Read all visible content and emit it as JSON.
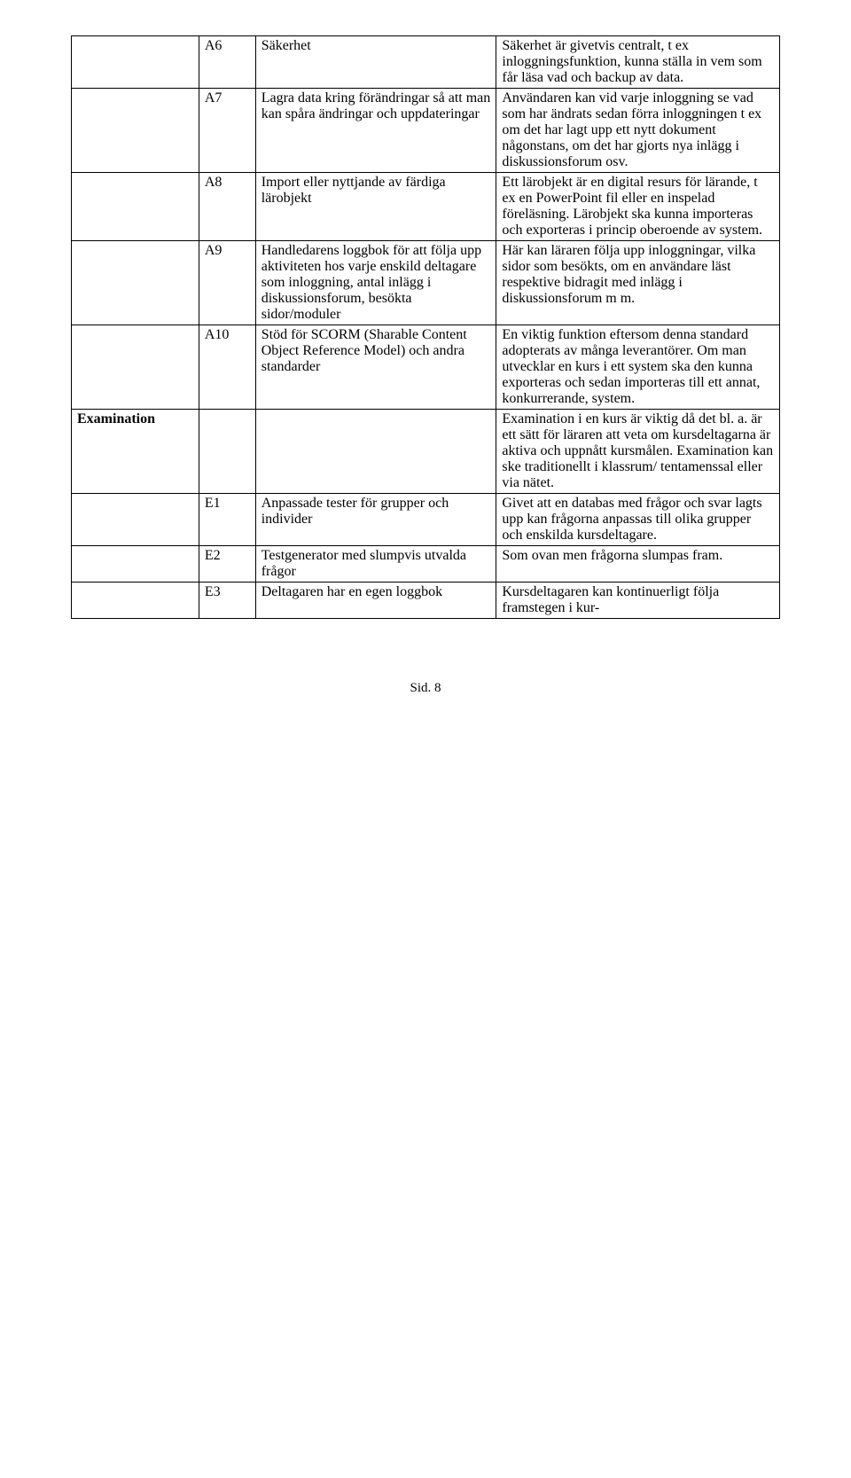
{
  "rows": [
    {
      "cat": "",
      "id": "A6",
      "f": "Säkerhet",
      "d": "Säkerhet är givetvis centralt, t ex inloggningsfunktion, kunna ställa in vem som får läsa vad och backup av data."
    },
    {
      "cat": "",
      "id": "A7",
      "f": "Lagra data kring förändringar så att man kan spåra ändringar och uppdateringar",
      "d": "Användaren kan vid varje inloggning se vad som har ändrats sedan förra inloggningen t ex om det har lagt upp ett nytt dokument någonstans, om det har gjorts nya inlägg i diskussionsforum osv."
    },
    {
      "cat": "",
      "id": "A8",
      "f": "Import eller nyttjande av färdiga lärobjekt",
      "d": "Ett lärobjekt är en digital resurs för lärande, t ex en PowerPoint fil eller en inspelad föreläsning. Lärobjekt ska kunna importeras och exporteras i princip oberoende av system."
    },
    {
      "cat": "",
      "id": "A9",
      "f": "Handledarens loggbok för att följa upp aktiviteten hos varje enskild deltagare som inloggning, antal inlägg i diskussionsforum, besökta sidor/moduler",
      "d": "Här kan läraren följa upp inloggningar, vilka sidor som besökts, om en användare läst respektive bidragit med inlägg i diskussionsforum m m."
    },
    {
      "cat": "",
      "id": "A10",
      "f": "Stöd för SCORM (Sharable Content Object Reference Model) och andra standarder",
      "d": "En viktig funktion eftersom denna standard adopterats av många leverantörer. Om man utvecklar en kurs i ett system ska den kunna exporteras och sedan importeras till ett annat, konkurrerande, system."
    },
    {
      "cat": "Examination",
      "cat_bold": true,
      "id": "",
      "f": "",
      "d": "Examination i en kurs är viktig då det bl. a. är ett sätt för läraren att veta om kursdeltagarna är aktiva och uppnått kursmålen. Examination kan ske traditionellt i klassrum/ tentamenssal eller via nätet."
    },
    {
      "cat": "",
      "id": "E1",
      "f": "Anpassade tester för grupper och individer",
      "d": "Givet att en databas med frågor och svar lagts upp kan frågorna anpassas till olika grupper och enskilda kursdeltagare."
    },
    {
      "cat": "",
      "id": "E2",
      "f": "Testgenerator med slumpvis utvalda frågor",
      "d": "Som ovan men frågorna slumpas fram."
    },
    {
      "cat": "",
      "id": "E3",
      "f": "Deltagaren har en egen loggbok",
      "d": "Kursdeltagaren kan kontinuerligt följa framstegen i kur-"
    }
  ],
  "footer": "Sid. 8"
}
